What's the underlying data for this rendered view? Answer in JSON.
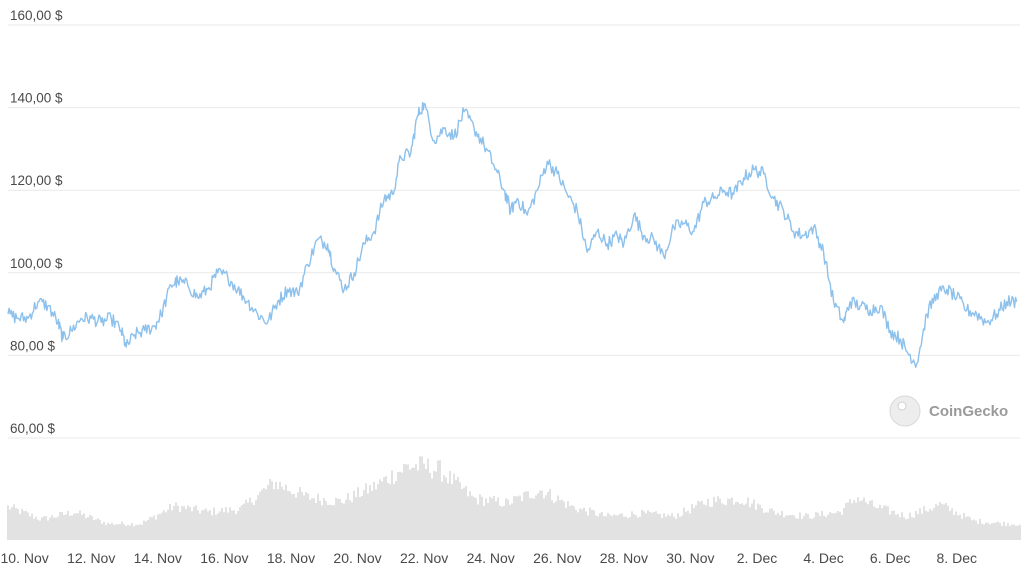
{
  "watermark": {
    "label": "CoinGecko"
  },
  "chart_data": {
    "type": "line",
    "title": "",
    "xlabel": "",
    "ylabel": "",
    "ylim": [
      60,
      160
    ],
    "yticks": [
      {
        "value": 60,
        "label": "60,00 $"
      },
      {
        "value": 80,
        "label": "80,00 $"
      },
      {
        "value": 100,
        "label": "100,00 $"
      },
      {
        "value": 120,
        "label": "120,00 $"
      },
      {
        "value": 140,
        "label": "140,00 $"
      },
      {
        "value": 160,
        "label": "160,00 $"
      }
    ],
    "xlim": [
      0,
      30.4
    ],
    "xticks": [
      {
        "value": 0.5,
        "label": "10. Nov"
      },
      {
        "value": 2.5,
        "label": "12. Nov"
      },
      {
        "value": 4.5,
        "label": "14. Nov"
      },
      {
        "value": 6.5,
        "label": "16. Nov"
      },
      {
        "value": 8.5,
        "label": "18. Nov"
      },
      {
        "value": 10.5,
        "label": "20. Nov"
      },
      {
        "value": 12.5,
        "label": "22. Nov"
      },
      {
        "value": 14.5,
        "label": "24. Nov"
      },
      {
        "value": 16.5,
        "label": "26. Nov"
      },
      {
        "value": 18.5,
        "label": "28. Nov"
      },
      {
        "value": 20.5,
        "label": "30. Nov"
      },
      {
        "value": 22.5,
        "label": "2. Dec"
      },
      {
        "value": 24.5,
        "label": "4. Dec"
      },
      {
        "value": 26.5,
        "label": "6. Dec"
      },
      {
        "value": 28.5,
        "label": "8. Dec"
      }
    ],
    "grid": true,
    "series": [
      {
        "color": "#8dc1ec",
        "x": [
          0.0,
          0.3,
          0.6,
          0.9,
          1.2,
          1.5,
          1.65,
          1.9,
          2.2,
          2.5,
          2.8,
          3.1,
          3.4,
          3.55,
          3.8,
          4.1,
          4.4,
          4.6,
          4.9,
          5.1,
          5.4,
          5.7,
          6.0,
          6.3,
          6.6,
          6.9,
          7.2,
          7.5,
          7.8,
          8.1,
          8.4,
          8.7,
          9.0,
          9.3,
          9.6,
          9.8,
          10.1,
          10.4,
          10.7,
          11.0,
          11.3,
          11.55,
          11.8,
          12.1,
          12.3,
          12.5,
          12.8,
          13.1,
          13.4,
          13.7,
          14.0,
          14.3,
          14.6,
          14.9,
          15.1,
          15.3,
          15.6,
          15.9,
          16.2,
          16.5,
          16.8,
          17.1,
          17.4,
          17.7,
          18.0,
          18.3,
          18.5,
          18.8,
          19.1,
          19.4,
          19.7,
          20.0,
          20.3,
          20.6,
          20.9,
          21.2,
          21.5,
          21.8,
          22.1,
          22.4,
          22.7,
          23.0,
          23.3,
          23.6,
          23.9,
          24.2,
          24.5,
          24.8,
          25.1,
          25.3,
          25.6,
          25.9,
          26.2,
          26.5,
          26.8,
          27.0,
          27.3,
          27.6,
          27.9,
          28.2,
          28.5,
          28.8,
          29.1,
          29.4,
          29.7,
          30.0,
          30.3
        ],
        "values": [
          90,
          89,
          89,
          93,
          92,
          88,
          84,
          86,
          89,
          89,
          88,
          89,
          86,
          82,
          85,
          86,
          87,
          90,
          97,
          98,
          97,
          94,
          96,
          100,
          99,
          96,
          93,
          90,
          88,
          93,
          96,
          95,
          102,
          108,
          107,
          101,
          96,
          100,
          107,
          110,
          118,
          119,
          128,
          129,
          138,
          141,
          132,
          135,
          133,
          139,
          135,
          131,
          126,
          120,
          115,
          118,
          114,
          120,
          127,
          124,
          119,
          115,
          105,
          110,
          107,
          109,
          107,
          114,
          109,
          108,
          104,
          111,
          112,
          110,
          117,
          118,
          120,
          119,
          123,
          125,
          124,
          118,
          115,
          110,
          109,
          111,
          105,
          93,
          88,
          93,
          92,
          91,
          92,
          86,
          84,
          81,
          78,
          90,
          95,
          96,
          94,
          91,
          90,
          88,
          90,
          93,
          93
        ]
      }
    ],
    "volume": {
      "color": "#c4c4c4",
      "x": [
        0,
        1,
        2,
        3,
        4,
        5,
        6,
        7,
        8,
        9,
        10,
        11,
        12,
        12.5,
        13,
        14,
        15,
        16,
        17,
        18,
        19,
        20,
        21,
        22,
        23,
        24,
        25,
        25.5,
        26,
        27,
        28,
        29,
        30,
        30.4
      ],
      "values": [
        0.45,
        0.28,
        0.38,
        0.22,
        0.22,
        0.46,
        0.38,
        0.42,
        0.78,
        0.58,
        0.52,
        0.72,
        1.0,
        1.0,
        0.94,
        0.56,
        0.5,
        0.68,
        0.44,
        0.32,
        0.36,
        0.32,
        0.52,
        0.56,
        0.38,
        0.32,
        0.38,
        0.58,
        0.46,
        0.32,
        0.48,
        0.26,
        0.22,
        0.22
      ]
    }
  }
}
